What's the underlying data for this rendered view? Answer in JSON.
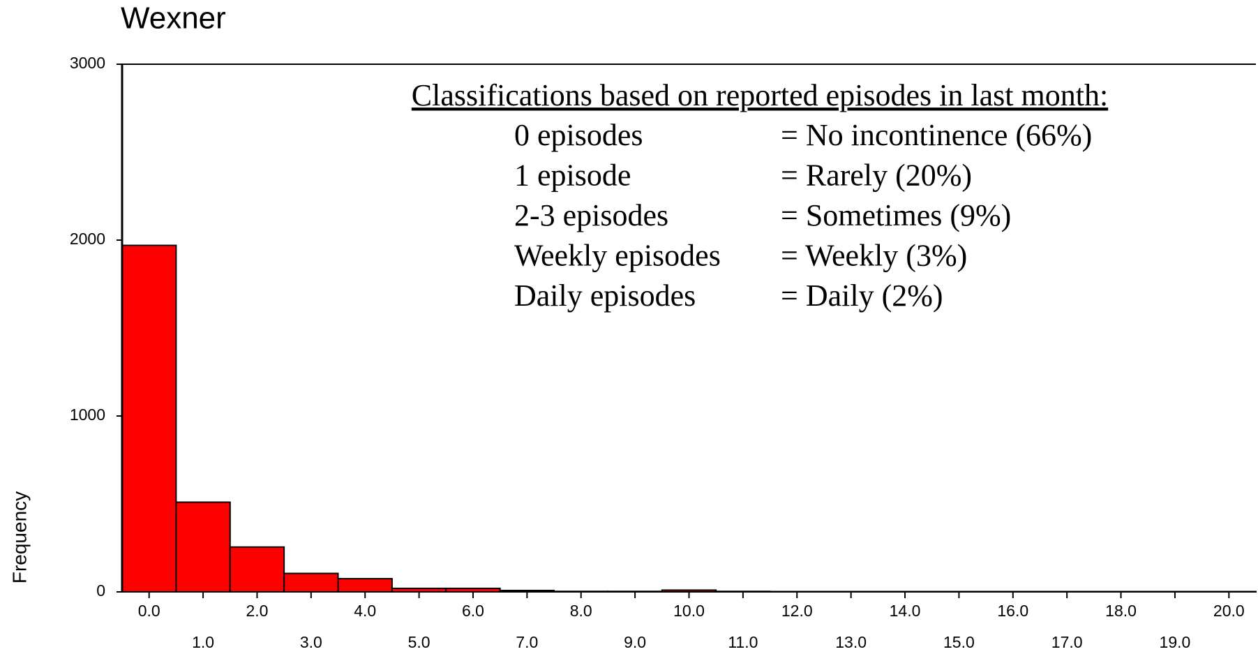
{
  "chart_data": {
    "type": "histogram",
    "title": "Wexner",
    "ylabel": "Frequency",
    "bins": [
      -0.5,
      0.5,
      1.5,
      2.5,
      3.5,
      4.5,
      5.5,
      6.5,
      7.5,
      8.5,
      9.5,
      10.5,
      11.5,
      12.5,
      13.5,
      14.5,
      15.5,
      16.5,
      17.5,
      18.5,
      19.5,
      20.5
    ],
    "values": [
      1970,
      510,
      255,
      105,
      75,
      20,
      20,
      8,
      3,
      3,
      10,
      3,
      2,
      2,
      2,
      2,
      2,
      2,
      2,
      2,
      2
    ],
    "color": "#ff0000",
    "xlim": [
      -0.5,
      20.5
    ],
    "ylim": [
      0,
      3000
    ],
    "yticks": [
      0,
      1000,
      2000,
      3000
    ],
    "xticks": [
      {
        "value": 0,
        "label": "0.0"
      },
      {
        "value": 1,
        "label": "1.0"
      },
      {
        "value": 2,
        "label": "2.0"
      },
      {
        "value": 3,
        "label": "3.0"
      },
      {
        "value": 4,
        "label": "4.0"
      },
      {
        "value": 5,
        "label": "5.0"
      },
      {
        "value": 6,
        "label": "6.0"
      },
      {
        "value": 7,
        "label": "7.0"
      },
      {
        "value": 8,
        "label": "8.0"
      },
      {
        "value": 9,
        "label": "9.0"
      },
      {
        "value": 10,
        "label": "10.0"
      },
      {
        "value": 11,
        "label": "11.0"
      },
      {
        "value": 12,
        "label": "12.0"
      },
      {
        "value": 13,
        "label": "13.0"
      },
      {
        "value": 14,
        "label": "14.0"
      },
      {
        "value": 15,
        "label": "15.0"
      },
      {
        "value": 16,
        "label": "16.0"
      },
      {
        "value": 17,
        "label": "17.0"
      },
      {
        "value": 18,
        "label": "18.0"
      },
      {
        "value": 19,
        "label": "19.0"
      },
      {
        "value": 20,
        "label": "20.0"
      }
    ],
    "annotation": {
      "title": "Classifications based on reported episodes in last month:",
      "rows": [
        [
          "0 episodes",
          "= No incontinence (66%)"
        ],
        [
          "1 episode",
          "= Rarely (20%)"
        ],
        [
          "2-3 episodes",
          "= Sometimes (9%)"
        ],
        [
          "Weekly episodes",
          "= Weekly (3%)"
        ],
        [
          "Daily episodes",
          "= Daily (2%)"
        ]
      ]
    }
  }
}
